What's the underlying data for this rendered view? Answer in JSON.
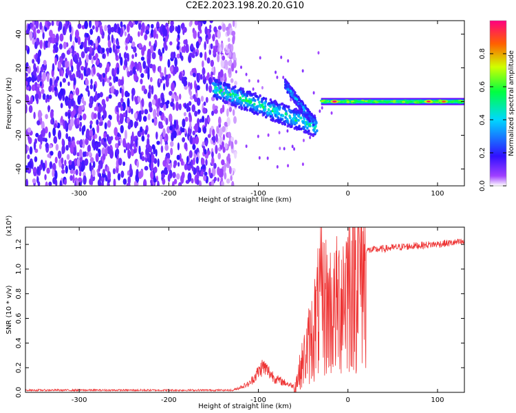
{
  "title": "C2E2.2023.198.20.20.G10",
  "chart_data": [
    {
      "type": "heatmap",
      "title": "C2E2.2023.198.20.20.G10",
      "xlabel": "Height of straight line (km)",
      "ylabel": "Frequency (Hz)",
      "xlim": [
        -360,
        130
      ],
      "ylim": [
        -50,
        48
      ],
      "x_ticks": [
        -300,
        -200,
        -100,
        0,
        100
      ],
      "y_ticks": [
        -40,
        -20,
        0,
        20,
        40
      ],
      "colorbar": {
        "label": "Normalized spectral amplitude",
        "range": [
          0,
          1
        ],
        "ticks": [
          0.0,
          0.2,
          0.4,
          0.6,
          0.8
        ],
        "colors": [
          "#ffffff",
          "#a040ff",
          "#3010ff",
          "#00d8ff",
          "#00ff40",
          "#d0ff00",
          "#ff6000",
          "#ff0080"
        ]
      },
      "features": {
        "noise_region_x": [
          -360,
          -125
        ],
        "noise_amplitude": 0.15,
        "meteor_trail": {
          "start": [
            -150,
            8
          ],
          "end": [
            -35,
            -15
          ],
          "peak_amplitude": 0.45
        },
        "secondary_trail": {
          "start": [
            -70,
            10
          ],
          "end": [
            -38,
            -12
          ]
        },
        "carrier_band": {
          "x": [
            -30,
            130
          ],
          "frequency": 0,
          "bright_points": [
            {
              "x": -15,
              "amplitude": 1.0
            },
            {
              "x": 90,
              "amplitude": 0.95
            },
            {
              "x": 107,
              "amplitude": 0.9
            }
          ]
        }
      }
    },
    {
      "type": "line",
      "title": "",
      "xlabel": "Height of straight line (km)",
      "ylabel": "SNR (10 * v/v)",
      "y_scale_label": "(x10⁴)",
      "xlim": [
        -360,
        130
      ],
      "ylim": [
        0,
        1.34
      ],
      "x_ticks": [
        -300,
        -200,
        -100,
        0,
        100
      ],
      "y_ticks": [
        0.0,
        0.2,
        0.4,
        0.6,
        0.8,
        1.0,
        1.2
      ],
      "color": "#ee3333",
      "series": [
        {
          "name": "",
          "envelope": [
            {
              "x": -360,
              "y": 0.01
            },
            {
              "x": -130,
              "y": 0.01
            },
            {
              "x": -110,
              "y": 0.06
            },
            {
              "x": -95,
              "y": 0.18
            },
            {
              "x": -80,
              "y": 0.09
            },
            {
              "x": -60,
              "y": 0.04
            },
            {
              "x": -40,
              "y": 0.5
            },
            {
              "x": -30,
              "y": 0.8
            },
            {
              "x": -15,
              "y": 0.7
            },
            {
              "x": -5,
              "y": 0.9
            },
            {
              "x": 5,
              "y": 1.05
            },
            {
              "x": 20,
              "y": 1.15
            },
            {
              "x": 60,
              "y": 1.18
            },
            {
              "x": 130,
              "y": 1.22
            }
          ]
        }
      ]
    }
  ]
}
